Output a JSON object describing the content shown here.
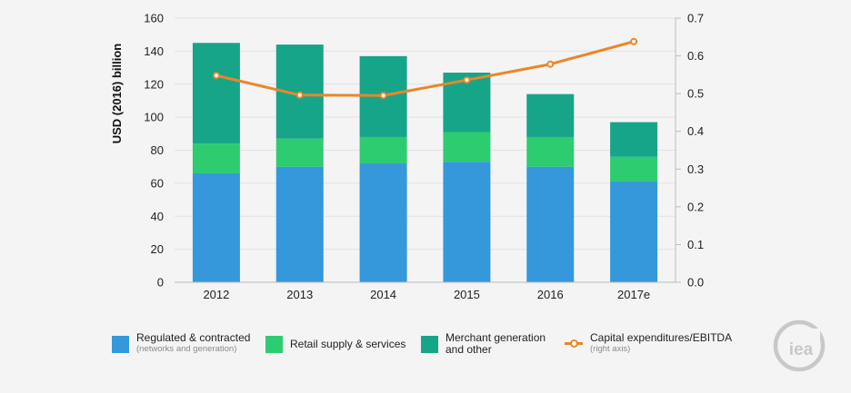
{
  "chart_data": {
    "type": "bar",
    "stacked": true,
    "categories": [
      "2012",
      "2013",
      "2014",
      "2015",
      "2016",
      "2017e"
    ],
    "series": [
      {
        "name": "Regulated & contracted",
        "sub": "(networks and generation)",
        "color": "#3498db",
        "values": [
          66,
          70,
          72,
          73,
          70,
          61
        ]
      },
      {
        "name": "Retail supply & services",
        "color": "#2ecc71",
        "values": [
          18,
          17,
          16,
          18,
          18,
          15
        ]
      },
      {
        "name": "Merchant generation and other",
        "color": "#17a589",
        "values": [
          61,
          57,
          49,
          36,
          26,
          21
        ]
      }
    ],
    "line_series": {
      "name": "Capital expenditures/EBITDA",
      "sub": "(right axis)",
      "color": "#e8872a",
      "axis": "right",
      "values": [
        0.548,
        0.496,
        0.495,
        0.536,
        0.578,
        0.638
      ]
    },
    "ylabel": "USD (2016) billion",
    "ylim": [
      0,
      160
    ],
    "yticks": [
      "0",
      "20",
      "40",
      "60",
      "80",
      "100",
      "120",
      "140",
      "160"
    ],
    "y2lim": [
      0,
      0.7
    ],
    "y2ticks": [
      "0.0",
      "0.1",
      "0.2",
      "0.3",
      "0.4",
      "0.5",
      "0.6",
      "0.7"
    ],
    "grid": true,
    "legend_position": "bottom"
  },
  "legend": {
    "item1_label": "Regulated & contracted",
    "item1_sub": "(networks and generation)",
    "item2_label": "Retail supply & services",
    "item3_label_line1": "Merchant generation",
    "item3_label_line2": "and other",
    "item4_label": "Capital expenditures/EBITDA",
    "item4_sub": "(right axis)"
  },
  "logo": {
    "text": "iea"
  },
  "colors": {
    "background": "#f4f4f4",
    "grid": "#e2e2e2",
    "axis": "#bbbbbb"
  }
}
